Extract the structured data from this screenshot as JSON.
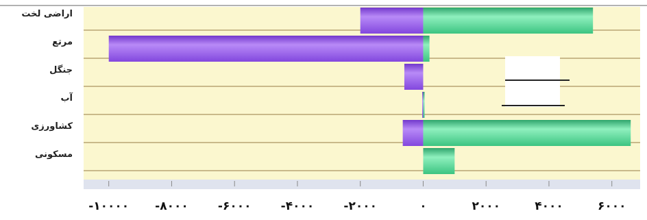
{
  "chart_data": {
    "type": "bar",
    "orientation": "horizontal",
    "categories": [
      "اراضی لخت",
      "مرتع",
      "جنگل",
      "آب",
      "کشاورزی",
      "مسکونی"
    ],
    "series": [
      {
        "color": "#9b5cf0",
        "values": [
          -2000,
          -10000,
          -600,
          -30,
          -650,
          0
        ]
      },
      {
        "color": "#4fd694",
        "values": [
          5400,
          200,
          0,
          30,
          6600,
          1000
        ]
      }
    ],
    "xlim": [
      -10800,
      6900
    ],
    "x_ticks": [
      -10000,
      -8000,
      -6000,
      -4000,
      -2000,
      0,
      2000,
      4000,
      6000
    ],
    "x_tick_labels": [
      "-۱۰۰۰۰",
      "-۸۰۰۰",
      "-۶۰۰۰",
      "-۴۰۰۰",
      "-۲۰۰۰",
      "۰",
      "۲۰۰۰",
      "۴۰۰۰",
      "۶۰۰۰"
    ],
    "title": "",
    "xlabel": "",
    "ylabel": "",
    "grid": true,
    "plot_background": "#fbf7cf",
    "grid_color": "#c9b98a"
  }
}
